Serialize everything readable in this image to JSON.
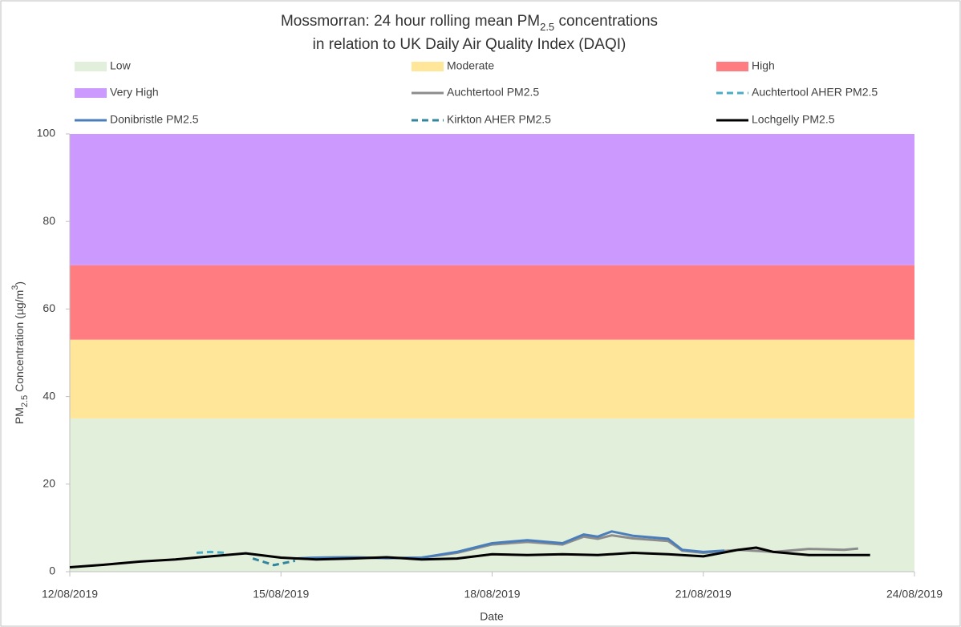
{
  "chart_data": {
    "type": "line",
    "title": {
      "line1": [
        "Mossmorran: 24 hour rolling mean PM",
        "2.5",
        " concentrations"
      ],
      "line2": "in relation to UK Daily Air Quality Index (DAQI)"
    },
    "x_label": "Date",
    "y_label": [
      "PM",
      "2.5",
      " Concentration (µg/m",
      "3",
      ")"
    ],
    "xlim": [
      43689,
      43701
    ],
    "xticks": [
      {
        "value": 43689,
        "label": "12/08/2019"
      },
      {
        "value": 43692,
        "label": "15/08/2019"
      },
      {
        "value": 43695,
        "label": "18/08/2019"
      },
      {
        "value": 43698,
        "label": "21/08/2019"
      },
      {
        "value": 43701,
        "label": "24/08/2019"
      }
    ],
    "ylim": [
      0,
      100
    ],
    "yticks": [
      0,
      20,
      40,
      60,
      80,
      100
    ],
    "bands": [
      {
        "name": "Low",
        "from": 0,
        "to": 35,
        "color": "#e2efda"
      },
      {
        "name": "Moderate",
        "from": 35,
        "to": 53,
        "color": "#ffe699"
      },
      {
        "name": "High",
        "from": 53,
        "to": 70,
        "color": "#ff7c80"
      },
      {
        "name": "Very High",
        "from": 70,
        "to": 100,
        "color": "#cc99ff"
      }
    ],
    "series": [
      {
        "name": "Auchtertool PM2.5",
        "color": "#8c8c8c",
        "dash": false,
        "x": [
          43692.2,
          43692.5,
          43693,
          43693.5,
          43694,
          43694.5,
          43695,
          43695.5,
          43696,
          43696.3,
          43696.5,
          43696.7,
          43697,
          43697.5,
          43697.7,
          43698,
          43698.5,
          43699,
          43699.5,
          43700,
          43700.2
        ],
        "values": [
          3,
          3.2,
          3.3,
          3.1,
          3.2,
          4.3,
          6.2,
          6.8,
          6.2,
          8,
          7.5,
          8.3,
          7.6,
          7,
          4.8,
          4.3,
          5,
          4.5,
          5.2,
          5,
          5.3
        ]
      },
      {
        "name": "Auchtertool AHER PM2.5",
        "color": "#4bacc6",
        "dash": true,
        "x": [
          43690.8,
          43691,
          43691.2
        ],
        "values": [
          4.3,
          4.5,
          4.3
        ]
      },
      {
        "name": "Donibristle PM2.5",
        "color": "#4a7ebb",
        "dash": false,
        "x": [
          43692.2,
          43692.5,
          43693,
          43693.5,
          43694,
          43694.5,
          43695,
          43695.5,
          43696,
          43696.3,
          43696.5,
          43696.7,
          43697,
          43697.5,
          43697.7,
          43698,
          43698.3
        ],
        "values": [
          3,
          3.2,
          3.3,
          3.1,
          3.2,
          4.5,
          6.5,
          7.2,
          6.5,
          8.5,
          8,
          9.2,
          8.2,
          7.5,
          5,
          4.5,
          4.8
        ]
      },
      {
        "name": "Kirkton AHER PM2.5",
        "color": "#31859c",
        "dash": true,
        "x": [
          43691.6,
          43691.9,
          43692.2
        ],
        "values": [
          3,
          1.5,
          2.5
        ]
      },
      {
        "name": "Lochgelly PM2.5",
        "color": "#000000",
        "dash": false,
        "x": [
          43689,
          43689.5,
          43690,
          43690.5,
          43691,
          43691.5,
          43692,
          43692.5,
          43693,
          43693.5,
          43694,
          43694.5,
          43695,
          43695.5,
          43696,
          43696.5,
          43697,
          43697.5,
          43698,
          43698.5,
          43698.75,
          43699,
          43699.5,
          43700,
          43700.37
        ],
        "values": [
          1,
          1.6,
          2.3,
          2.8,
          3.5,
          4.2,
          3.2,
          2.8,
          3,
          3.3,
          2.8,
          3,
          4,
          3.8,
          4,
          3.8,
          4.3,
          4,
          3.5,
          5,
          5.5,
          4.5,
          3.8,
          3.8,
          3.8
        ]
      }
    ]
  }
}
